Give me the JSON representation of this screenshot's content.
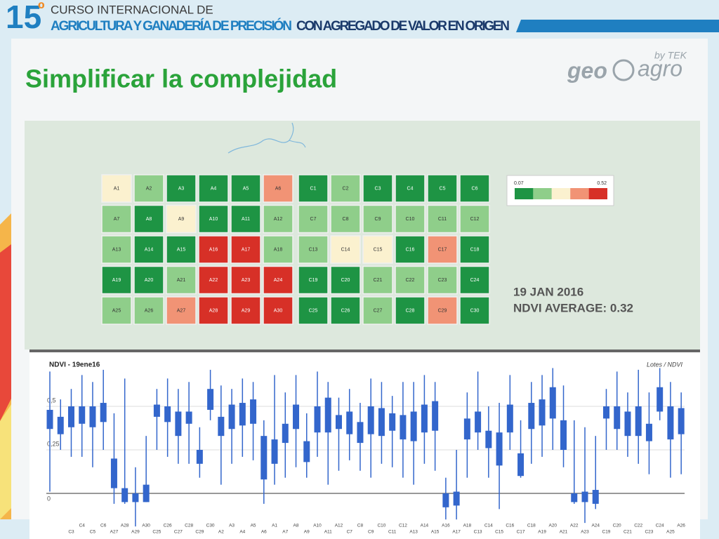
{
  "header": {
    "number": "15",
    "ordinal": "º",
    "line1": "CURSO INTERNACIONAL DE",
    "line2a": "AGRICULTURA Y GANADERÍA DE PRECISIÓN",
    "line2b": "CON AGREGADO DE VALOR EN ORIGEN"
  },
  "slide_title": "Simplificar la complejidad",
  "logo": {
    "geo": "geo",
    "agro": "agro",
    "by": "by TEK"
  },
  "map": {
    "blocks": [
      [
        [
          "A1",
          "#fbf1cf"
        ],
        [
          "A2",
          "#8fce8a"
        ],
        [
          "A3",
          "#1e9444"
        ],
        [
          "A4",
          "#1e9444"
        ],
        [
          "A5",
          "#1e9444"
        ],
        [
          "A6",
          "#f19375"
        ],
        [
          "A7",
          "#8fce8a"
        ],
        [
          "A8",
          "#1e9444"
        ],
        [
          "A9",
          "#fbf1cf"
        ],
        [
          "A10",
          "#1e9444"
        ],
        [
          "A11",
          "#1e9444"
        ],
        [
          "A12",
          "#8fce8a"
        ],
        [
          "A13",
          "#8fce8a"
        ],
        [
          "A14",
          "#1e9444"
        ],
        [
          "A15",
          "#1e9444"
        ],
        [
          "A16",
          "#d73027"
        ],
        [
          "A17",
          "#d73027"
        ],
        [
          "A18",
          "#8fce8a"
        ],
        [
          "A19",
          "#1e9444"
        ],
        [
          "A20",
          "#1e9444"
        ],
        [
          "A21",
          "#8fce8a"
        ],
        [
          "A22",
          "#d73027"
        ],
        [
          "A23",
          "#d73027"
        ],
        [
          "A24",
          "#d73027"
        ],
        [
          "A25",
          "#8fce8a"
        ],
        [
          "A26",
          "#8fce8a"
        ],
        [
          "A27",
          "#f19375"
        ],
        [
          "A28",
          "#d73027"
        ],
        [
          "A29",
          "#d73027"
        ],
        [
          "A30",
          "#d73027"
        ]
      ],
      [
        [
          "C1",
          "#1e9444"
        ],
        [
          "C2",
          "#8fce8a"
        ],
        [
          "C3",
          "#1e9444"
        ],
        [
          "C4",
          "#1e9444"
        ],
        [
          "C5",
          "#1e9444"
        ],
        [
          "C6",
          "#1e9444"
        ],
        [
          "C7",
          "#8fce8a"
        ],
        [
          "C8",
          "#8fce8a"
        ],
        [
          "C9",
          "#8fce8a"
        ],
        [
          "C10",
          "#8fce8a"
        ],
        [
          "C11",
          "#8fce8a"
        ],
        [
          "C12",
          "#8fce8a"
        ],
        [
          "C13",
          "#8fce8a"
        ],
        [
          "C14",
          "#fbf1cf"
        ],
        [
          "C15",
          "#fbf1cf"
        ],
        [
          "C16",
          "#1e9444"
        ],
        [
          "C17",
          "#f19375"
        ],
        [
          "C18",
          "#1e9444"
        ],
        [
          "C19",
          "#1e9444"
        ],
        [
          "C20",
          "#1e9444"
        ],
        [
          "C21",
          "#8fce8a"
        ],
        [
          "C22",
          "#8fce8a"
        ],
        [
          "C23",
          "#8fce8a"
        ],
        [
          "C24",
          "#1e9444"
        ],
        [
          "C25",
          "#1e9444"
        ],
        [
          "C26",
          "#1e9444"
        ],
        [
          "C27",
          "#8fce8a"
        ],
        [
          "C28",
          "#1e9444"
        ],
        [
          "C29",
          "#f19375"
        ],
        [
          "C30",
          "#1e9444"
        ]
      ]
    ],
    "legend": {
      "min": "0.07",
      "max": "0.52",
      "colors": [
        "#1e9444",
        "#8fce8a",
        "#fbf1cf",
        "#f19375",
        "#d73027"
      ]
    },
    "date": "19 JAN 2016",
    "average": "NDVI AVERAGE: 0.32"
  },
  "chart_data": {
    "type": "candlestick",
    "title": "NDVI - 19ene16",
    "legend_label": "Lotes / NDVI",
    "color": "#3366cc",
    "categories": [
      null,
      null,
      "C3",
      "C4",
      "C5",
      "C6",
      "A27",
      "A28",
      "A29",
      "A30",
      "C25",
      "C26",
      "C27",
      "C28",
      "C29",
      "C30",
      "A2",
      "A3",
      "A4",
      "A5",
      "A6",
      "A1",
      "A7",
      "A8",
      "A9",
      "A10",
      "A11",
      "A12",
      "C7",
      "C8",
      "C9",
      "C10",
      "C11",
      "C12",
      "A13",
      "A14",
      "A15",
      "A16",
      "A17",
      "A18",
      "C13",
      "C14",
      "C15",
      "C16",
      "C17",
      "C18",
      "A19",
      "A20",
      "A21",
      "A22",
      "A23",
      "A24",
      "C19",
      "C20",
      "C21",
      "C22",
      "C23",
      "C24",
      "A25",
      "A26"
    ],
    "high": [
      0.7,
      0.54,
      0.6,
      0.68,
      0.64,
      0.71,
      0.46,
      0.66,
      0.15,
      0.33,
      0.6,
      0.66,
      0.6,
      0.64,
      0.38,
      0.71,
      0.62,
      0.6,
      0.66,
      0.64,
      0.42,
      0.68,
      0.58,
      0.68,
      0.46,
      0.7,
      0.64,
      0.55,
      0.6,
      0.52,
      0.66,
      0.64,
      0.56,
      0.64,
      0.64,
      0.68,
      0.64,
      0.09,
      0.25,
      0.58,
      0.7,
      0.5,
      0.52,
      0.68,
      0.42,
      0.64,
      0.68,
      0.72,
      0.62,
      0.42,
      0.38,
      0.33,
      0.6,
      0.7,
      0.58,
      0.71,
      0.58,
      0.72,
      0.64,
      0.58
    ],
    "q3": [
      0.48,
      0.44,
      0.5,
      0.5,
      0.5,
      0.52,
      0.2,
      0.03,
      0.0,
      0.05,
      0.51,
      0.5,
      0.47,
      0.47,
      0.25,
      0.6,
      0.44,
      0.51,
      0.52,
      0.54,
      0.33,
      0.31,
      0.4,
      0.51,
      0.3,
      0.5,
      0.55,
      0.45,
      0.47,
      0.41,
      0.5,
      0.49,
      0.46,
      0.45,
      0.47,
      0.51,
      0.53,
      0.0,
      0.01,
      0.43,
      0.47,
      0.36,
      0.35,
      0.51,
      0.23,
      0.52,
      0.54,
      0.61,
      0.42,
      0.0,
      0.01,
      0.02,
      0.5,
      0.5,
      0.47,
      0.5,
      0.4,
      0.61,
      0.5,
      0.49
    ],
    "q1": [
      0.37,
      0.34,
      0.38,
      0.4,
      0.38,
      0.41,
      0.03,
      -0.05,
      -0.05,
      -0.05,
      0.44,
      0.41,
      0.33,
      0.4,
      0.17,
      0.48,
      0.33,
      0.37,
      0.39,
      0.4,
      0.08,
      0.17,
      0.29,
      0.37,
      0.18,
      0.35,
      0.35,
      0.37,
      0.34,
      0.29,
      0.34,
      0.33,
      0.36,
      0.31,
      0.3,
      0.35,
      0.36,
      -0.08,
      -0.07,
      0.31,
      0.35,
      0.26,
      0.16,
      0.35,
      0.1,
      0.37,
      0.39,
      0.43,
      0.25,
      -0.05,
      -0.05,
      -0.06,
      0.43,
      0.37,
      0.33,
      0.33,
      0.3,
      0.47,
      0.31,
      0.34
    ],
    "low": [
      0.01,
      0.25,
      0.21,
      0.21,
      0.15,
      0.25,
      -0.06,
      -0.06,
      -0.19,
      -0.05,
      0.25,
      0.21,
      0.17,
      0.17,
      0.09,
      0.42,
      0.05,
      0.17,
      0.21,
      0.19,
      -0.06,
      0.05,
      0.09,
      0.15,
      0.09,
      0.21,
      0.05,
      0.13,
      0.19,
      0.13,
      0.09,
      0.17,
      0.15,
      0.09,
      0.05,
      0.17,
      0.13,
      -0.15,
      -0.15,
      0.09,
      0.25,
      0.09,
      -0.09,
      0.25,
      0.09,
      0.17,
      0.21,
      0.25,
      0.15,
      -0.06,
      -0.17,
      -0.09,
      0.25,
      0.25,
      0.21,
      0.17,
      0.11,
      0.42,
      0.09,
      0.11
    ],
    "ylim": [
      -0.18,
      0.72
    ],
    "yticks": [
      0,
      {
        "value": 0.25,
        "label": "0,25"
      },
      {
        "value": 0.5,
        "label": "0,5"
      }
    ],
    "grid": true
  }
}
